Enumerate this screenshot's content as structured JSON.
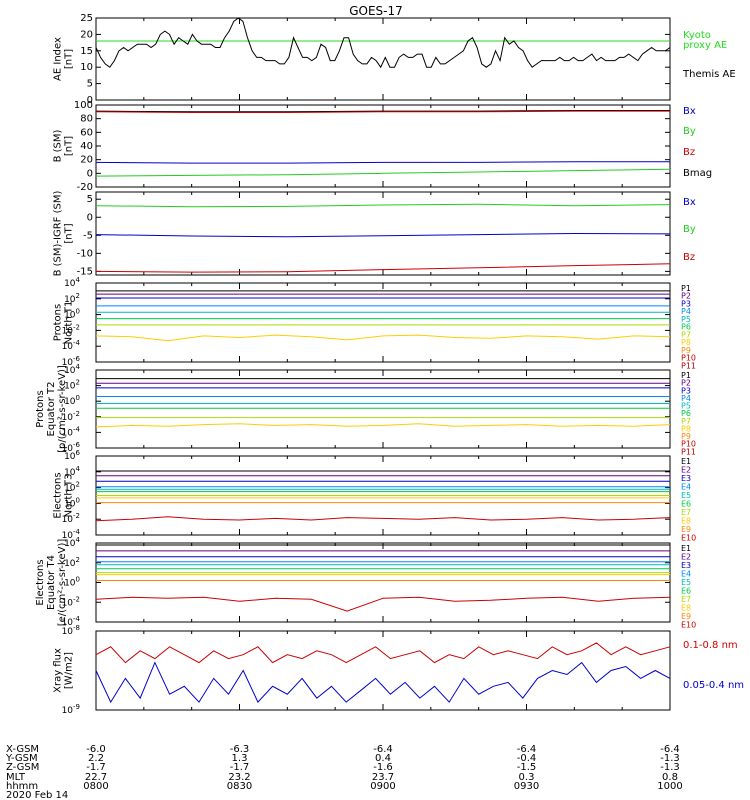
{
  "title": "GOES-17",
  "footer": {
    "row_labels": [
      "X-GSM",
      "Y-GSM",
      "Z-GSM",
      "MLT",
      "hhmm"
    ],
    "date": "2020 Feb 14",
    "columns": [
      [
        "-6.0",
        "2.2",
        "-1.7",
        "22.7",
        "0800"
      ],
      [
        "-6.3",
        "1.3",
        "-1.7",
        "23.2",
        "0830"
      ],
      [
        "-6.4",
        "0.4",
        "-1.6",
        "23.7",
        "0900"
      ],
      [
        "-6.4",
        "-0.4",
        "-1.5",
        "0.3",
        "0930"
      ],
      [
        "-6.4",
        "-1.3",
        "-1.3",
        "0.8",
        "1000"
      ]
    ]
  },
  "chart_data": [
    {
      "type": "line",
      "ylabel": [
        "AE Index",
        "[nT]"
      ],
      "ylim": [
        0,
        25
      ],
      "yticks": [
        "0",
        "5",
        "10",
        "15",
        "20",
        "25"
      ],
      "legend": [
        {
          "label": "Kyoto",
          "color": "#22dd22"
        },
        {
          "label": "proxy AE",
          "color": "#22dd22"
        },
        {
          "label": "Themis AE",
          "color": "#000000"
        }
      ],
      "series": [
        {
          "name": "Kyoto proxy AE",
          "color": "#22dd22",
          "values": [
            18,
            18
          ]
        },
        {
          "name": "Themis AE",
          "color": "#000000",
          "values": [
            16,
            13,
            11,
            10,
            12,
            15,
            16,
            15,
            16,
            17,
            17,
            17,
            16,
            17,
            20,
            21,
            20,
            17,
            19,
            18,
            17,
            20,
            18,
            17,
            17,
            17,
            16,
            16,
            19,
            21,
            24,
            25,
            24,
            19,
            15,
            13,
            13,
            12,
            12,
            12,
            11,
            11,
            13,
            19,
            16,
            13,
            13,
            12,
            13,
            17,
            16,
            12,
            12,
            15,
            19,
            19,
            14,
            12,
            11,
            11,
            13,
            12,
            10,
            13,
            10,
            10,
            13,
            14,
            13,
            13,
            14,
            14,
            10,
            10,
            13,
            11,
            11,
            12,
            13,
            14,
            15,
            18,
            19,
            16,
            11,
            10,
            11,
            15,
            12,
            19,
            17,
            18,
            16,
            15,
            12,
            10,
            11,
            12,
            12,
            12,
            12,
            13,
            12,
            12,
            13,
            12,
            12,
            13,
            14,
            12,
            13,
            12,
            12,
            12,
            13,
            13,
            14,
            13,
            12,
            14,
            15,
            16,
            15,
            15,
            15,
            16
          ]
        }
      ]
    },
    {
      "type": "line",
      "ylabel": [
        "B (SM)",
        "[nT]"
      ],
      "ylim": [
        -20,
        100
      ],
      "yticks": [
        "-20",
        "0",
        "20",
        "40",
        "60",
        "80",
        "100"
      ],
      "legend": [
        {
          "label": "Bx",
          "color": "#0000cc"
        },
        {
          "label": "By",
          "color": "#22cc22"
        },
        {
          "label": "Bz",
          "color": "#cc0000"
        },
        {
          "label": "Bmag",
          "color": "#000000"
        }
      ],
      "series": [
        {
          "name": "Bmag",
          "color": "#000000",
          "values": [
            91,
            90,
            90,
            91,
            91,
            92,
            92
          ]
        },
        {
          "name": "Bz",
          "color": "#cc0000",
          "values": [
            90,
            89,
            89,
            90,
            90,
            91,
            91
          ]
        },
        {
          "name": "Bx",
          "color": "#0000cc",
          "values": [
            16,
            15,
            15,
            16,
            16,
            17,
            17
          ]
        },
        {
          "name": "By",
          "color": "#22cc22",
          "values": [
            -4,
            -3,
            -2,
            0,
            2,
            4,
            6
          ]
        }
      ]
    },
    {
      "type": "line",
      "ylabel": [
        "B (SM)-IGRF (SM)",
        "[nT]"
      ],
      "ylim": [
        -16,
        7
      ],
      "yticks": [
        "-15",
        "-10",
        "-5",
        "0",
        "5"
      ],
      "legend": [
        {
          "label": "Bx",
          "color": "#0000cc"
        },
        {
          "label": "By",
          "color": "#22cc22"
        },
        {
          "label": "Bz",
          "color": "#cc0000"
        }
      ],
      "series": [
        {
          "name": "By",
          "color": "#22cc22",
          "values": [
            3.2,
            2.9,
            3.0,
            3.4,
            3.6,
            3.2,
            3.5
          ]
        },
        {
          "name": "Bx",
          "color": "#0000cc",
          "values": [
            -4.8,
            -5.2,
            -5.4,
            -5.1,
            -4.8,
            -4.5,
            -4.6
          ]
        },
        {
          "name": "Bz",
          "color": "#cc0000",
          "values": [
            -15.0,
            -15.2,
            -15.1,
            -14.5,
            -14.0,
            -13.4,
            -12.9
          ]
        }
      ]
    },
    {
      "type": "line",
      "log": true,
      "ylabel": [
        "Protons",
        "North T1"
      ],
      "ylim": [
        -6,
        4
      ],
      "ytick_exponents": [
        -6,
        -4,
        -2,
        0,
        2,
        4
      ],
      "legend": [
        {
          "label": "P1",
          "color": "#000000"
        },
        {
          "label": "P2",
          "color": "#660088"
        },
        {
          "label": "P3",
          "color": "#0000cc"
        },
        {
          "label": "P4",
          "color": "#0088ff"
        },
        {
          "label": "P5",
          "color": "#00bbbb"
        },
        {
          "label": "P6",
          "color": "#00cc44"
        },
        {
          "label": "P7",
          "color": "#aadd00"
        },
        {
          "label": "P8",
          "color": "#ffcc00"
        },
        {
          "label": "P9",
          "color": "#ff8800"
        },
        {
          "label": "P10",
          "color": "#cc0000"
        },
        {
          "label": "P11",
          "color": "#aa0000"
        }
      ],
      "series": [
        {
          "name": "P1",
          "color": "#000000",
          "values": [
            3.0,
            3.0
          ]
        },
        {
          "name": "P2",
          "color": "#660088",
          "values": [
            2.6,
            2.6
          ]
        },
        {
          "name": "P3",
          "color": "#0000cc",
          "values": [
            2.1,
            2.1
          ]
        },
        {
          "name": "P4",
          "color": "#0088ff",
          "values": [
            1.1,
            1.1
          ]
        },
        {
          "name": "P5",
          "color": "#00bbbb",
          "values": [
            0.3,
            0.3
          ]
        },
        {
          "name": "P6",
          "color": "#00cc44",
          "values": [
            -0.5,
            -0.5
          ]
        },
        {
          "name": "P7",
          "color": "#aadd00",
          "values": [
            -1.3,
            -1.3
          ]
        },
        {
          "name": "P8",
          "color": "#ffcc00",
          "values": [
            -2.7,
            -2.8,
            -3.3,
            -2.7,
            -2.9,
            -2.6,
            -2.8,
            -3.2,
            -2.7,
            -2.6,
            -2.9,
            -3.0,
            -2.7,
            -2.8,
            -3.1,
            -2.7,
            -2.8
          ]
        }
      ]
    },
    {
      "type": "line",
      "log": true,
      "ylabel": [
        "Protons",
        "Equator T2",
        "[p/(cm²-s-sr-keV)]"
      ],
      "ylim": [
        -6,
        4
      ],
      "ytick_exponents": [
        -6,
        -4,
        -2,
        0,
        2,
        4
      ],
      "legend": [
        {
          "label": "P1",
          "color": "#000000"
        },
        {
          "label": "P2",
          "color": "#660088"
        },
        {
          "label": "P3",
          "color": "#0000cc"
        },
        {
          "label": "P4",
          "color": "#0088ff"
        },
        {
          "label": "P5",
          "color": "#00bbbb"
        },
        {
          "label": "P6",
          "color": "#00cc44"
        },
        {
          "label": "P7",
          "color": "#aadd00"
        },
        {
          "label": "P8",
          "color": "#ffcc00"
        },
        {
          "label": "P9",
          "color": "#ff8800"
        },
        {
          "label": "P10",
          "color": "#cc0000"
        },
        {
          "label": "P11",
          "color": "#aa0000"
        }
      ],
      "series": [
        {
          "name": "P1",
          "color": "#000000",
          "values": [
            2.9,
            2.9
          ]
        },
        {
          "name": "P2",
          "color": "#660088",
          "values": [
            2.3,
            2.3
          ]
        },
        {
          "name": "P3",
          "color": "#0000cc",
          "values": [
            1.7,
            1.7
          ]
        },
        {
          "name": "P4",
          "color": "#0088ff",
          "values": [
            0.6,
            0.6
          ]
        },
        {
          "name": "P5",
          "color": "#00bbbb",
          "values": [
            -0.3,
            -0.3
          ]
        },
        {
          "name": "P6",
          "color": "#00cc44",
          "values": [
            -0.9,
            -0.9
          ]
        },
        {
          "name": "P7",
          "color": "#aadd00",
          "values": [
            -2.1,
            -2.1
          ]
        },
        {
          "name": "P8",
          "color": "#ffcc00",
          "values": [
            -3.3,
            -3.1,
            -3.2,
            -3.0,
            -2.9,
            -3.1,
            -3.0,
            -3.2,
            -3.1,
            -2.9,
            -3.2,
            -3.1,
            -3.0,
            -3.2,
            -3.1,
            -3.2,
            -3.0
          ]
        }
      ]
    },
    {
      "type": "line",
      "log": true,
      "ylabel": [
        "Electrons",
        "North T3"
      ],
      "ylim": [
        -4,
        6
      ],
      "ytick_exponents": [
        -4,
        -2,
        0,
        2,
        4,
        6
      ],
      "legend": [
        {
          "label": "E1",
          "color": "#000000"
        },
        {
          "label": "E2",
          "color": "#660088"
        },
        {
          "label": "E3",
          "color": "#0000cc"
        },
        {
          "label": "E4",
          "color": "#0088ff"
        },
        {
          "label": "E5",
          "color": "#00bbbb"
        },
        {
          "label": "E6",
          "color": "#00cc44"
        },
        {
          "label": "E7",
          "color": "#aadd00"
        },
        {
          "label": "E8",
          "color": "#ffcc00"
        },
        {
          "label": "E9",
          "color": "#ff8800"
        },
        {
          "label": "E10",
          "color": "#cc0000"
        }
      ],
      "series": [
        {
          "name": "E1",
          "color": "#000000",
          "values": [
            4.1,
            4.1
          ]
        },
        {
          "name": "E2",
          "color": "#660088",
          "values": [
            3.5,
            3.5
          ]
        },
        {
          "name": "E3",
          "color": "#0000cc",
          "values": [
            2.8,
            2.8
          ]
        },
        {
          "name": "E4",
          "color": "#0088ff",
          "values": [
            2.1,
            2.1
          ]
        },
        {
          "name": "E5",
          "color": "#00bbbb",
          "values": [
            1.8,
            1.8
          ]
        },
        {
          "name": "E6",
          "color": "#00cc44",
          "values": [
            1.5,
            1.5
          ]
        },
        {
          "name": "E7",
          "color": "#aadd00",
          "values": [
            1.0,
            1.0
          ]
        },
        {
          "name": "E8",
          "color": "#ffcc00",
          "values": [
            0.7,
            0.7
          ]
        },
        {
          "name": "E9",
          "color": "#ff8800",
          "values": [
            0.1,
            0.1
          ]
        },
        {
          "name": "E10",
          "color": "#cc0000",
          "values": [
            -2.2,
            -2.0,
            -1.7,
            -2.0,
            -2.1,
            -1.9,
            -2.1,
            -1.8,
            -1.9,
            -2.0,
            -1.8,
            -2.1,
            -2.0,
            -1.8,
            -2.1,
            -2.0,
            -1.8
          ]
        }
      ]
    },
    {
      "type": "line",
      "log": true,
      "ylabel": [
        "Electrons",
        "Equator T4",
        "[e/(cm²-s-sr-keV)]"
      ],
      "ylim": [
        -4,
        4
      ],
      "ytick_exponents": [
        -4,
        -2,
        0,
        2,
        4
      ],
      "legend": [
        {
          "label": "E1",
          "color": "#000000"
        },
        {
          "label": "E2",
          "color": "#660088"
        },
        {
          "label": "E3",
          "color": "#0000cc"
        },
        {
          "label": "E4",
          "color": "#0088ff"
        },
        {
          "label": "E5",
          "color": "#00bbbb"
        },
        {
          "label": "E6",
          "color": "#00cc44"
        },
        {
          "label": "E7",
          "color": "#aadd00"
        },
        {
          "label": "E8",
          "color": "#ffcc00"
        },
        {
          "label": "E9",
          "color": "#ff8800"
        },
        {
          "label": "E10",
          "color": "#cc0000"
        }
      ],
      "series": [
        {
          "name": "E1",
          "color": "#000000",
          "values": [
            3.8,
            3.8
          ]
        },
        {
          "name": "E2",
          "color": "#660088",
          "values": [
            3.2,
            3.2
          ]
        },
        {
          "name": "E3",
          "color": "#0000cc",
          "values": [
            2.6,
            2.6
          ]
        },
        {
          "name": "E4",
          "color": "#0088ff",
          "values": [
            2.1,
            2.1
          ]
        },
        {
          "name": "E5",
          "color": "#00bbbb",
          "values": [
            1.8,
            1.8
          ]
        },
        {
          "name": "E6",
          "color": "#00cc44",
          "values": [
            1.4,
            1.4
          ]
        },
        {
          "name": "E7",
          "color": "#aadd00",
          "values": [
            1.0,
            1.0
          ]
        },
        {
          "name": "E8",
          "color": "#ffcc00",
          "values": [
            0.8,
            0.8
          ]
        },
        {
          "name": "E9",
          "color": "#ff8800",
          "values": [
            0.2,
            0.2
          ]
        },
        {
          "name": "E10",
          "color": "#cc0000",
          "values": [
            -1.7,
            -1.5,
            -1.6,
            -1.5,
            -1.9,
            -1.6,
            -1.7,
            -2.9,
            -1.6,
            -1.5,
            -1.9,
            -1.8,
            -1.6,
            -1.5,
            -1.9,
            -1.6,
            -1.5
          ]
        }
      ]
    },
    {
      "type": "line",
      "log": true,
      "ylabel": [
        "Xray flux",
        "[W/m2]"
      ],
      "ylim": [
        -9,
        -8
      ],
      "ytick_exponents": [
        -9,
        -8
      ],
      "legend": [
        {
          "label": "0.1-0.8 nm",
          "color": "#cc0000"
        },
        {
          "label": "0.05-0.4 nm",
          "color": "#0000cc"
        }
      ],
      "series": [
        {
          "name": "0.1-0.8 nm",
          "color": "#cc0000",
          "values": [
            -8.3,
            -8.2,
            -8.4,
            -8.25,
            -8.35,
            -8.2,
            -8.3,
            -8.4,
            -8.25,
            -8.35,
            -8.3,
            -8.2,
            -8.4,
            -8.3,
            -8.35,
            -8.25,
            -8.3,
            -8.4,
            -8.3,
            -8.2,
            -8.35,
            -8.3,
            -8.25,
            -8.4,
            -8.3,
            -8.35,
            -8.2,
            -8.3,
            -8.25,
            -8.3,
            -8.35,
            -8.2,
            -8.3,
            -8.25,
            -8.15,
            -8.3,
            -8.2,
            -8.3,
            -8.25,
            -8.2
          ]
        },
        {
          "name": "0.05-0.4 nm",
          "color": "#0000cc",
          "values": [
            -8.5,
            -8.9,
            -8.6,
            -8.85,
            -8.4,
            -8.8,
            -8.7,
            -8.9,
            -8.6,
            -8.8,
            -8.5,
            -8.9,
            -8.7,
            -8.8,
            -8.6,
            -8.85,
            -8.7,
            -8.9,
            -8.75,
            -8.6,
            -8.8,
            -8.65,
            -8.85,
            -8.7,
            -8.9,
            -8.6,
            -8.8,
            -8.7,
            -8.65,
            -8.85,
            -8.6,
            -8.5,
            -8.55,
            -8.4,
            -8.65,
            -8.5,
            -8.45,
            -8.6,
            -8.5,
            -8.6
          ]
        }
      ]
    }
  ]
}
